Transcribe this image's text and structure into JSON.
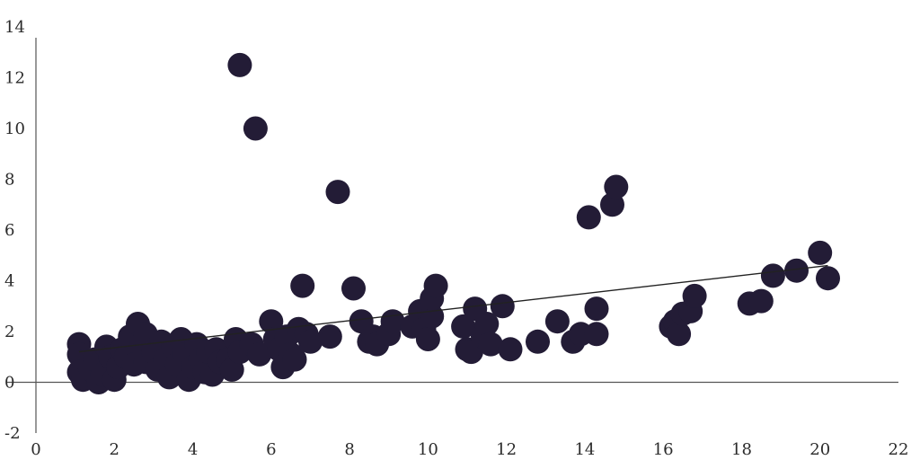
{
  "colors": {
    "point_fill": "#231c36",
    "background": "#ffffff",
    "axis": "#555555",
    "trendline": "#222222"
  },
  "chart_data": {
    "type": "scatter",
    "title": "",
    "xlabel": "",
    "ylabel": "",
    "xlim": [
      0,
      22
    ],
    "ylim": [
      -2,
      14
    ],
    "x_ticks": [
      0,
      2,
      4,
      6,
      8,
      10,
      12,
      14,
      16,
      18,
      20,
      22
    ],
    "y_ticks": [
      -2,
      0,
      2,
      4,
      6,
      8,
      10,
      12,
      14
    ],
    "grid": false,
    "legend": "none",
    "trendline": {
      "x": [
        1.1,
        20.2
      ],
      "y": [
        1.2,
        4.6
      ]
    },
    "points": [
      [
        1.1,
        1.5
      ],
      [
        1.1,
        1.1
      ],
      [
        1.2,
        0.8
      ],
      [
        1.1,
        0.4
      ],
      [
        1.2,
        0.1
      ],
      [
        1.4,
        0.5
      ],
      [
        1.5,
        0.9
      ],
      [
        1.6,
        0.0
      ],
      [
        1.7,
        0.3
      ],
      [
        1.8,
        1.4
      ],
      [
        1.9,
        1.0
      ],
      [
        2.0,
        0.1
      ],
      [
        2.1,
        0.6
      ],
      [
        2.2,
        1.3
      ],
      [
        2.3,
        1.0
      ],
      [
        2.4,
        1.8
      ],
      [
        2.5,
        0.7
      ],
      [
        2.6,
        2.3
      ],
      [
        2.7,
        1.5
      ],
      [
        2.8,
        1.9
      ],
      [
        2.8,
        0.8
      ],
      [
        3.0,
        1.2
      ],
      [
        3.1,
        0.5
      ],
      [
        3.2,
        1.6
      ],
      [
        3.3,
        0.9
      ],
      [
        3.4,
        0.2
      ],
      [
        3.5,
        1.4
      ],
      [
        3.6,
        0.7
      ],
      [
        3.7,
        1.7
      ],
      [
        3.8,
        1.1
      ],
      [
        3.9,
        0.1
      ],
      [
        4.0,
        0.6
      ],
      [
        4.1,
        1.5
      ],
      [
        4.2,
        0.9
      ],
      [
        4.3,
        0.4
      ],
      [
        4.4,
        1.2
      ],
      [
        4.5,
        0.3
      ],
      [
        4.6,
        1.3
      ],
      [
        4.7,
        0.8
      ],
      [
        4.9,
        0.9
      ],
      [
        5.0,
        0.5
      ],
      [
        5.1,
        1.7
      ],
      [
        5.2,
        1.2
      ],
      [
        5.2,
        12.5
      ],
      [
        5.5,
        1.5
      ],
      [
        5.6,
        10.0
      ],
      [
        5.7,
        1.1
      ],
      [
        6.0,
        2.4
      ],
      [
        6.1,
        1.7
      ],
      [
        6.2,
        1.3
      ],
      [
        6.3,
        0.6
      ],
      [
        6.4,
        1.8
      ],
      [
        6.5,
        1.1
      ],
      [
        6.6,
        0.9
      ],
      [
        6.7,
        2.1
      ],
      [
        6.8,
        3.8
      ],
      [
        6.9,
        1.9
      ],
      [
        7.0,
        1.6
      ],
      [
        7.5,
        1.8
      ],
      [
        7.7,
        7.5
      ],
      [
        8.1,
        3.7
      ],
      [
        8.3,
        2.4
      ],
      [
        8.5,
        1.6
      ],
      [
        8.6,
        1.8
      ],
      [
        8.7,
        1.5
      ],
      [
        9.0,
        1.9
      ],
      [
        9.1,
        2.4
      ],
      [
        9.6,
        2.2
      ],
      [
        9.8,
        2.8
      ],
      [
        9.9,
        2.1
      ],
      [
        10.0,
        1.7
      ],
      [
        10.1,
        2.6
      ],
      [
        10.1,
        3.3
      ],
      [
        10.2,
        3.8
      ],
      [
        10.9,
        2.2
      ],
      [
        11.0,
        1.3
      ],
      [
        11.1,
        1.2
      ],
      [
        11.2,
        2.9
      ],
      [
        11.4,
        1.8
      ],
      [
        11.5,
        2.3
      ],
      [
        11.6,
        1.5
      ],
      [
        11.9,
        3.0
      ],
      [
        12.1,
        1.3
      ],
      [
        12.8,
        1.6
      ],
      [
        13.3,
        2.4
      ],
      [
        13.7,
        1.6
      ],
      [
        13.9,
        1.9
      ],
      [
        14.1,
        6.5
      ],
      [
        14.3,
        2.9
      ],
      [
        14.3,
        1.9
      ],
      [
        14.7,
        7.0
      ],
      [
        14.8,
        7.7
      ],
      [
        16.2,
        2.2
      ],
      [
        16.3,
        2.4
      ],
      [
        16.4,
        1.9
      ],
      [
        16.5,
        2.7
      ],
      [
        16.7,
        2.8
      ],
      [
        16.8,
        3.4
      ],
      [
        18.2,
        3.1
      ],
      [
        18.5,
        3.2
      ],
      [
        18.8,
        4.2
      ],
      [
        19.4,
        4.4
      ],
      [
        20.0,
        5.1
      ],
      [
        20.2,
        4.1
      ]
    ]
  }
}
